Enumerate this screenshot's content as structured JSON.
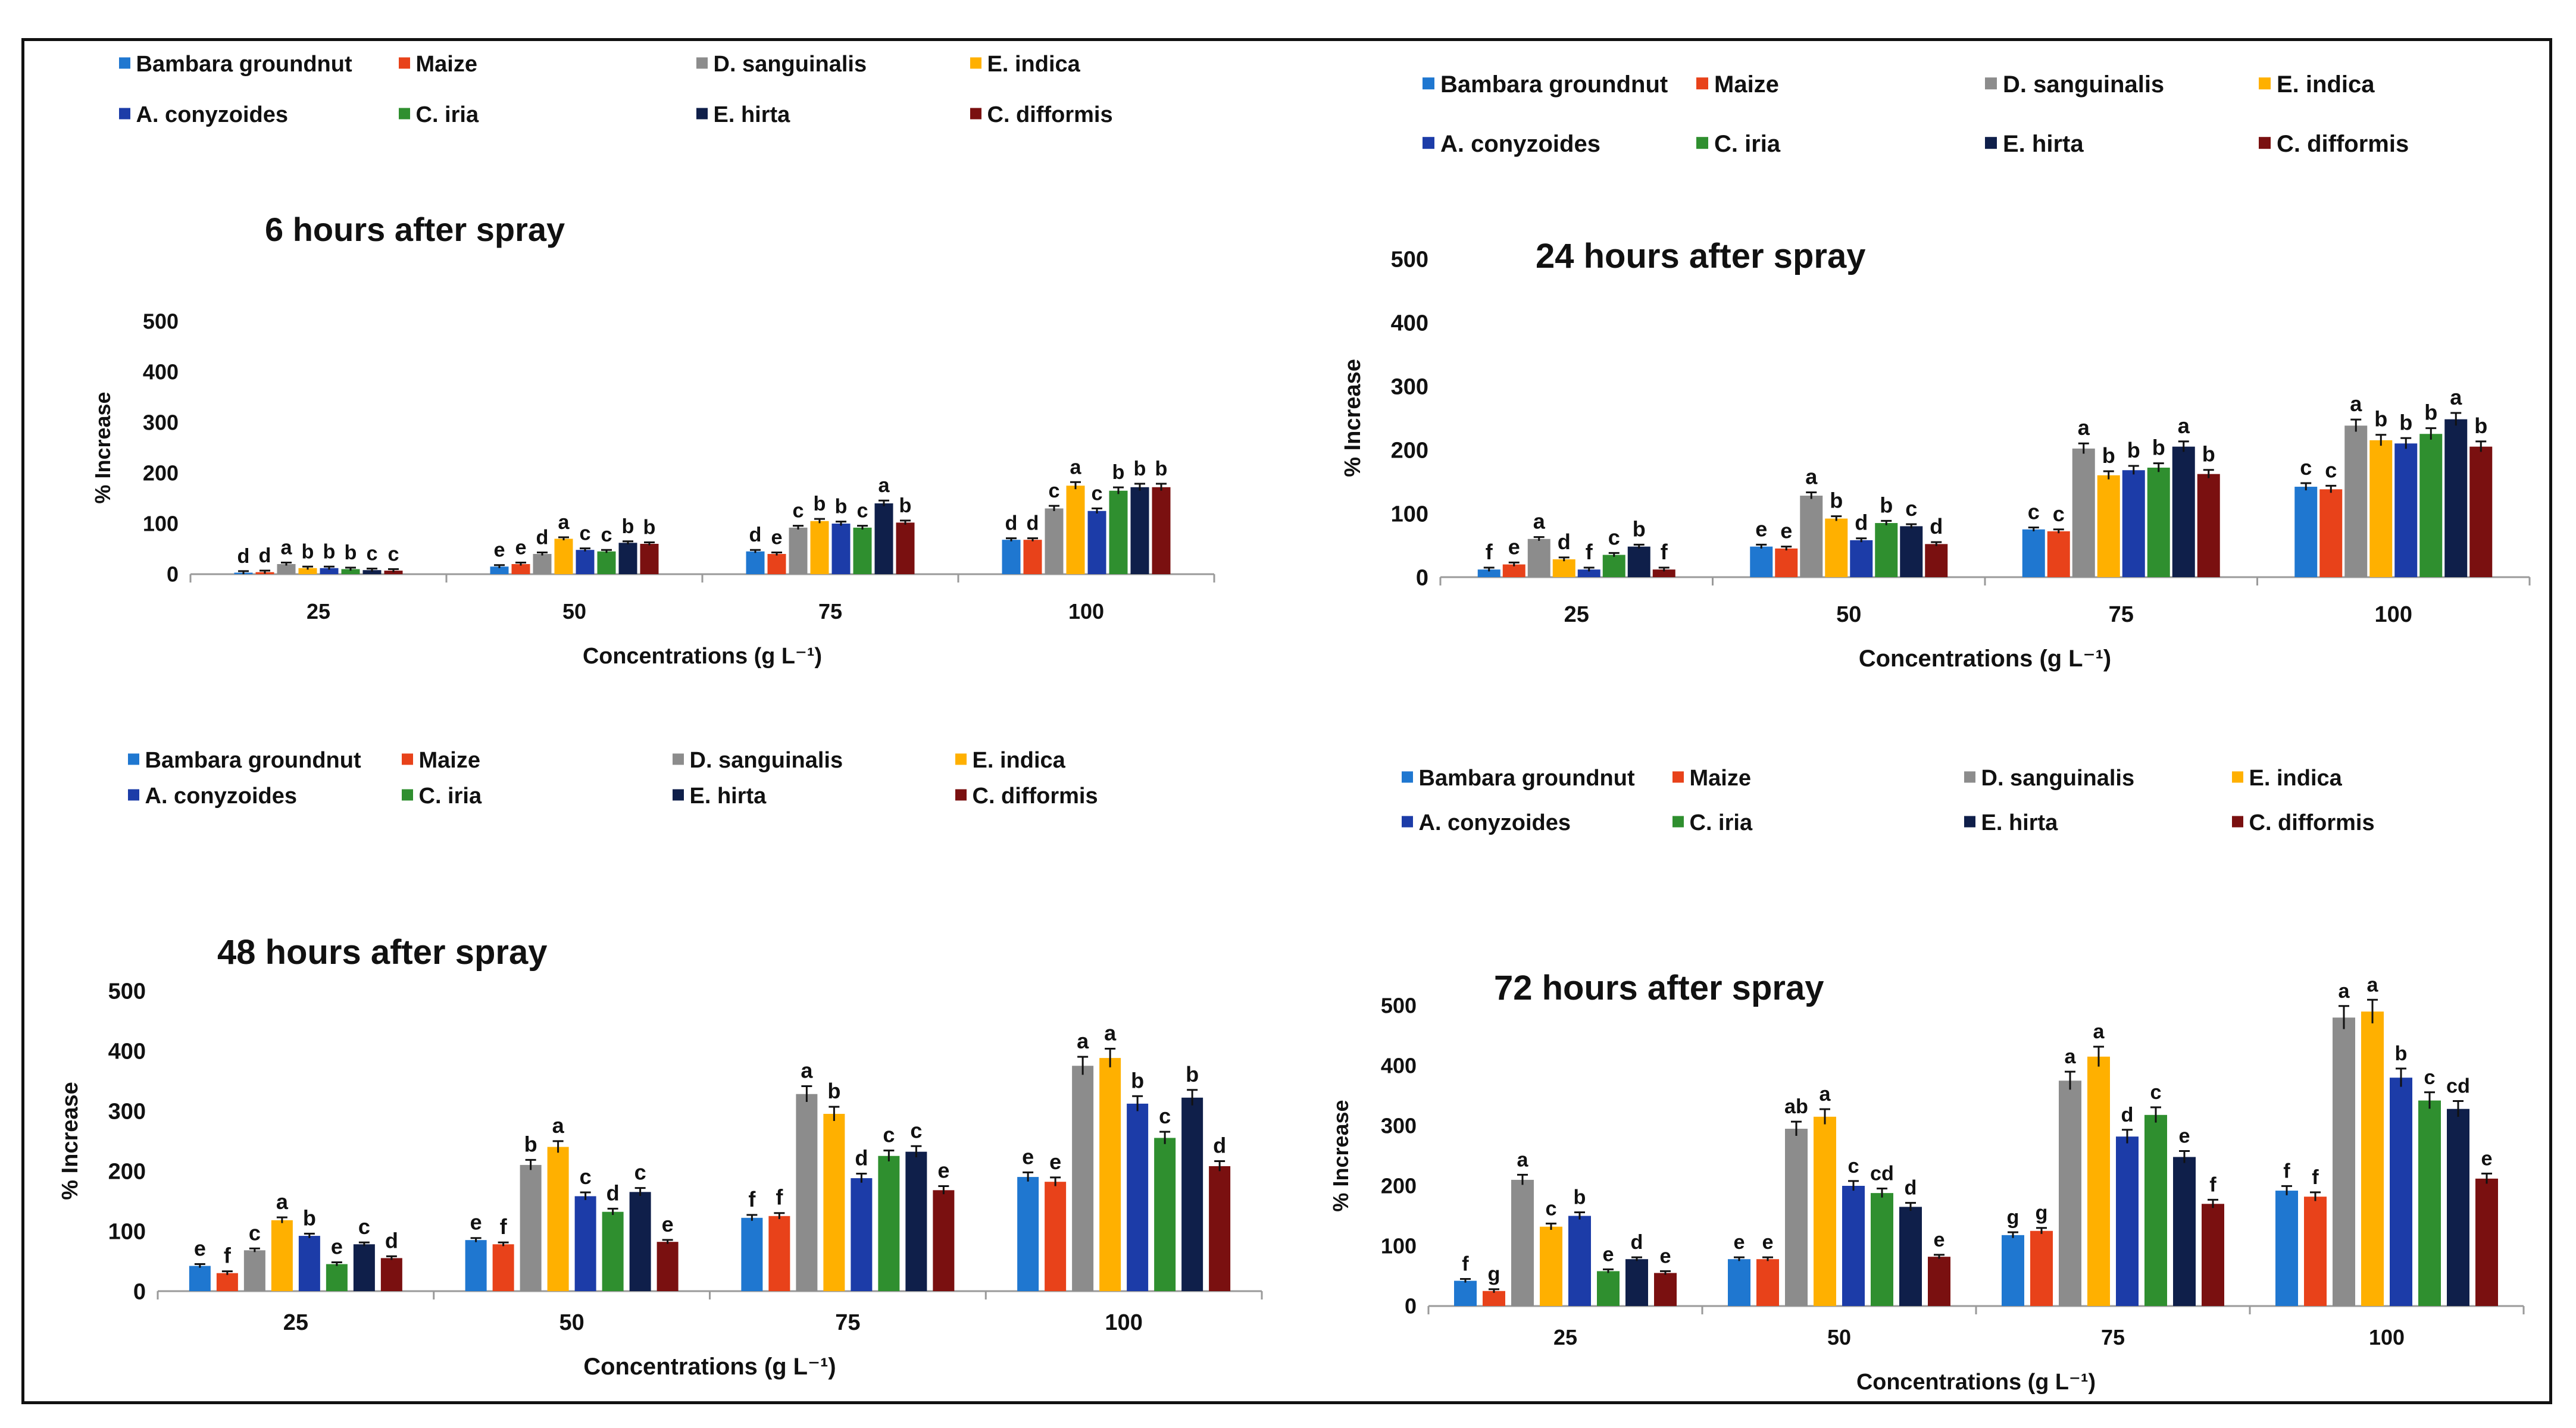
{
  "figure": {
    "concentration_unit_label": "Concentrations (g L⁻¹)"
  },
  "legend": [
    {
      "name": "Bambara groundnut",
      "color": "#1f77d0"
    },
    {
      "name": "Maize",
      "color": "#e8421a"
    },
    {
      "name": "D. sanguinalis",
      "color": "#8c8c8c"
    },
    {
      "name": "E. indica",
      "color": "#ffb000"
    },
    {
      "name": "A. conyzoides",
      "color": "#1c3ca8"
    },
    {
      "name": "C. iria",
      "color": "#2f8f2f"
    },
    {
      "name": "E. hirta",
      "color": "#0f1f4a"
    },
    {
      "name": "C. difformis",
      "color": "#7a1010"
    }
  ],
  "chart_data": [
    {
      "type": "bar",
      "title": "6 hours after spray",
      "xlabel": "Concentrations (g L⁻¹)",
      "ylabel": "% Increase",
      "ylim": [
        0,
        500
      ],
      "yticks": [
        "0",
        "100",
        "200",
        "300",
        "400",
        "500"
      ],
      "categories": [
        "25",
        "50",
        "75",
        "100"
      ],
      "series": [
        {
          "name": "Bambara groundnut",
          "values": [
            3,
            15,
            45,
            68
          ],
          "labels": [
            "d",
            "e",
            "d",
            "d"
          ]
        },
        {
          "name": "Maize",
          "values": [
            4,
            20,
            40,
            68
          ],
          "labels": [
            "d",
            "e",
            "e",
            "d"
          ]
        },
        {
          "name": "D. sanguinalis",
          "values": [
            20,
            40,
            92,
            130
          ],
          "labels": [
            "a",
            "d",
            "c",
            "c"
          ]
        },
        {
          "name": "E. indica",
          "values": [
            12,
            70,
            105,
            175
          ],
          "labels": [
            "b",
            "a",
            "b",
            "a"
          ]
        },
        {
          "name": "A. conyzoides",
          "values": [
            12,
            48,
            100,
            125
          ],
          "labels": [
            "b",
            "c",
            "b",
            "c"
          ]
        },
        {
          "name": "C. iria",
          "values": [
            10,
            45,
            92,
            165
          ],
          "labels": [
            "b",
            "c",
            "c",
            "b"
          ]
        },
        {
          "name": "E. hirta",
          "values": [
            8,
            62,
            140,
            172
          ],
          "labels": [
            "c",
            "b",
            "a",
            "b"
          ]
        },
        {
          "name": "C. difformis",
          "values": [
            7,
            60,
            102,
            172
          ],
          "labels": [
            "c",
            "b",
            "b",
            "b"
          ]
        }
      ]
    },
    {
      "type": "bar",
      "title": "24 hours after spray",
      "xlabel": "Concentrations (g L⁻¹)",
      "ylabel": "% Increase",
      "ylim": [
        0,
        500
      ],
      "yticks": [
        "0",
        "100",
        "200",
        "300",
        "400",
        "500"
      ],
      "categories": [
        "25",
        "50",
        "75",
        "100"
      ],
      "series": [
        {
          "name": "Bambara groundnut",
          "values": [
            12,
            48,
            75,
            142
          ],
          "labels": [
            "f",
            "e",
            "c",
            "c"
          ]
        },
        {
          "name": "Maize",
          "values": [
            20,
            45,
            72,
            138
          ],
          "labels": [
            "e",
            "e",
            "c",
            "c"
          ]
        },
        {
          "name": "D. sanguinalis",
          "values": [
            60,
            128,
            202,
            238
          ],
          "labels": [
            "a",
            "a",
            "a",
            "a"
          ]
        },
        {
          "name": "E. indica",
          "values": [
            28,
            92,
            160,
            215
          ],
          "labels": [
            "d",
            "b",
            "b",
            "b"
          ]
        },
        {
          "name": "A. conyzoides",
          "values": [
            12,
            58,
            168,
            210
          ],
          "labels": [
            "f",
            "d",
            "b",
            "b"
          ]
        },
        {
          "name": "C. iria",
          "values": [
            35,
            85,
            172,
            225
          ],
          "labels": [
            "c",
            "b",
            "b",
            "b"
          ]
        },
        {
          "name": "E. hirta",
          "values": [
            48,
            80,
            205,
            248
          ],
          "labels": [
            "b",
            "c",
            "a",
            "a"
          ]
        },
        {
          "name": "C. difformis",
          "values": [
            12,
            52,
            162,
            205
          ],
          "labels": [
            "f",
            "d",
            "b",
            "b"
          ]
        }
      ]
    },
    {
      "type": "bar",
      "title": "48 hours after spray",
      "xlabel": "Concentrations (g L⁻¹)",
      "ylabel": "% Increase",
      "ylim": [
        0,
        500
      ],
      "yticks": [
        "0",
        "100",
        "200",
        "300",
        "400",
        "500"
      ],
      "categories": [
        "25",
        "50",
        "75",
        "100"
      ],
      "series": [
        {
          "name": "Bambara groundnut",
          "values": [
            42,
            85,
            122,
            190
          ],
          "labels": [
            "e",
            "e",
            "f",
            "e"
          ]
        },
        {
          "name": "Maize",
          "values": [
            30,
            78,
            125,
            182
          ],
          "labels": [
            "f",
            "f",
            "f",
            "e"
          ]
        },
        {
          "name": "D. sanguinalis",
          "values": [
            68,
            210,
            328,
            375
          ],
          "labels": [
            "c",
            "b",
            "a",
            "a"
          ]
        },
        {
          "name": "E. indica",
          "values": [
            118,
            240,
            295,
            388
          ],
          "labels": [
            "a",
            "a",
            "b",
            "a"
          ]
        },
        {
          "name": "A. conyzoides",
          "values": [
            92,
            158,
            188,
            312
          ],
          "labels": [
            "b",
            "c",
            "d",
            "b"
          ]
        },
        {
          "name": "C. iria",
          "values": [
            45,
            132,
            225,
            255
          ],
          "labels": [
            "e",
            "d",
            "c",
            "c"
          ]
        },
        {
          "name": "E. hirta",
          "values": [
            78,
            165,
            232,
            322
          ],
          "labels": [
            "c",
            "c",
            "c",
            "b"
          ]
        },
        {
          "name": "C. difformis",
          "values": [
            55,
            82,
            168,
            208
          ],
          "labels": [
            "d",
            "e",
            "e",
            "d"
          ]
        }
      ]
    },
    {
      "type": "bar",
      "title": "72 hours after spray",
      "xlabel": "Concentrations (g L⁻¹)",
      "ylabel": "% Increase",
      "ylim": [
        0,
        500
      ],
      "yticks": [
        "0",
        "100",
        "200",
        "300",
        "400",
        "500"
      ],
      "categories": [
        "25",
        "50",
        "75",
        "100"
      ],
      "series": [
        {
          "name": "Bambara groundnut",
          "values": [
            42,
            78,
            118,
            192
          ],
          "labels": [
            "f",
            "e",
            "g",
            "f"
          ]
        },
        {
          "name": "Maize",
          "values": [
            25,
            78,
            125,
            182
          ],
          "labels": [
            "g",
            "e",
            "g",
            "f"
          ]
        },
        {
          "name": "D. sanguinalis",
          "values": [
            210,
            295,
            375,
            480
          ],
          "labels": [
            "a",
            "ab",
            "a",
            "a"
          ]
        },
        {
          "name": "E. indica",
          "values": [
            132,
            315,
            415,
            490
          ],
          "labels": [
            "c",
            "a",
            "a",
            "a"
          ]
        },
        {
          "name": "A. conyzoides",
          "values": [
            150,
            200,
            282,
            380
          ],
          "labels": [
            "b",
            "c",
            "d",
            "b"
          ]
        },
        {
          "name": "C. iria",
          "values": [
            58,
            188,
            318,
            342
          ],
          "labels": [
            "e",
            "cd",
            "c",
            "c"
          ]
        },
        {
          "name": "E. hirta",
          "values": [
            78,
            165,
            248,
            328
          ],
          "labels": [
            "d",
            "d",
            "e",
            "cd"
          ]
        },
        {
          "name": "C. difformis",
          "values": [
            55,
            82,
            170,
            212
          ],
          "labels": [
            "e",
            "e",
            "f",
            "e"
          ]
        }
      ]
    }
  ]
}
